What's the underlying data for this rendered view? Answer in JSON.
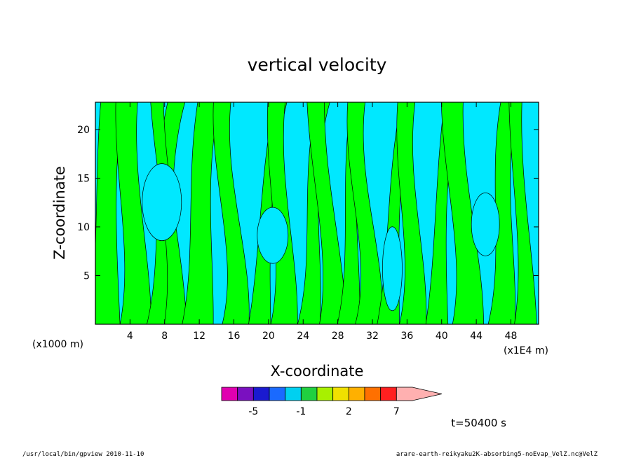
{
  "chart_data": {
    "type": "heatmap",
    "title": "vertical velocity",
    "xlabel": "X-coordinate",
    "ylabel": "Z-coordinate",
    "x_unit_left": "(x1000 m)",
    "x_unit_right": "(x1E4 m)",
    "xlim": [
      0,
      51.2
    ],
    "ylim": [
      0,
      22.8
    ],
    "x_ticks": [
      4,
      8,
      12,
      16,
      20,
      24,
      28,
      32,
      36,
      40,
      44,
      48
    ],
    "y_ticks": [
      5,
      10,
      15,
      20
    ],
    "time_label": "t=50400 s",
    "colorbar": {
      "colors": [
        "#e000b0",
        "#7a10c0",
        "#1a1ad0",
        "#1a6aff",
        "#00d0f0",
        "#20d040",
        "#a8f000",
        "#f0e000",
        "#ffb000",
        "#ff7000",
        "#ff2020",
        "#ff8080",
        "#ffb0b0"
      ],
      "tick_labels": [
        "-5",
        "-1",
        "2",
        "7"
      ],
      "tick_values": [
        -5,
        -1,
        2,
        7
      ],
      "levels": [
        -7,
        -6,
        -5,
        -3,
        -2,
        -1,
        0,
        1,
        2,
        3,
        5,
        7,
        9,
        12
      ]
    },
    "field_colors": {
      "negative": "#00e8ff",
      "positive": "#00ff00"
    }
  },
  "footer": {
    "left": "/usr/local/bin/gpview  2010-11-10",
    "right": "arare-earth-reikyaku2K-absorbing5-noEvap_VelZ.nc@VelZ"
  }
}
